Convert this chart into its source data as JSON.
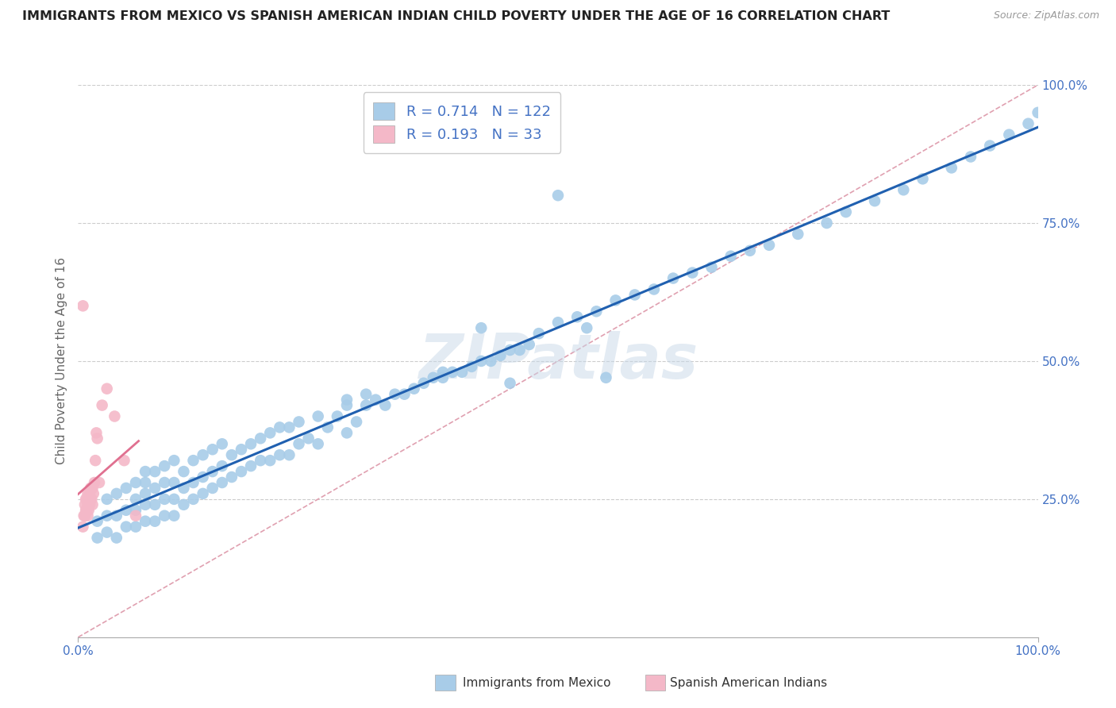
{
  "title": "IMMIGRANTS FROM MEXICO VS SPANISH AMERICAN INDIAN CHILD POVERTY UNDER THE AGE OF 16 CORRELATION CHART",
  "source": "Source: ZipAtlas.com",
  "ylabel": "Child Poverty Under the Age of 16",
  "R_blue": 0.714,
  "N_blue": 122,
  "R_pink": 0.193,
  "N_pink": 33,
  "legend_label_blue": "Immigrants from Mexico",
  "legend_label_pink": "Spanish American Indians",
  "blue_color": "#a8cce8",
  "pink_color": "#f4b8c8",
  "blue_line_color": "#2060b0",
  "pink_line_color": "#e07090",
  "diag_color": "#e0a0b0",
  "diag_style": "--",
  "watermark": "ZIPatlas",
  "bg_color": "#ffffff",
  "blue_scatter_x": [
    0.02,
    0.02,
    0.03,
    0.03,
    0.03,
    0.04,
    0.04,
    0.04,
    0.05,
    0.05,
    0.05,
    0.06,
    0.06,
    0.06,
    0.06,
    0.07,
    0.07,
    0.07,
    0.07,
    0.07,
    0.08,
    0.08,
    0.08,
    0.08,
    0.09,
    0.09,
    0.09,
    0.09,
    0.1,
    0.1,
    0.1,
    0.1,
    0.11,
    0.11,
    0.11,
    0.12,
    0.12,
    0.12,
    0.13,
    0.13,
    0.13,
    0.14,
    0.14,
    0.14,
    0.15,
    0.15,
    0.15,
    0.16,
    0.16,
    0.17,
    0.17,
    0.18,
    0.18,
    0.19,
    0.19,
    0.2,
    0.2,
    0.21,
    0.21,
    0.22,
    0.22,
    0.23,
    0.23,
    0.24,
    0.25,
    0.25,
    0.26,
    0.27,
    0.28,
    0.28,
    0.29,
    0.3,
    0.31,
    0.32,
    0.33,
    0.34,
    0.35,
    0.36,
    0.37,
    0.38,
    0.39,
    0.4,
    0.41,
    0.42,
    0.43,
    0.44,
    0.45,
    0.46,
    0.47,
    0.48,
    0.5,
    0.52,
    0.54,
    0.56,
    0.58,
    0.6,
    0.62,
    0.64,
    0.66,
    0.68,
    0.7,
    0.72,
    0.75,
    0.78,
    0.8,
    0.83,
    0.86,
    0.88,
    0.91,
    0.93,
    0.95,
    0.97,
    0.99,
    1.0,
    0.5,
    0.53,
    0.55,
    0.38,
    0.42,
    0.45,
    0.28,
    0.3
  ],
  "blue_scatter_y": [
    0.18,
    0.21,
    0.19,
    0.22,
    0.25,
    0.18,
    0.22,
    0.26,
    0.2,
    0.23,
    0.27,
    0.2,
    0.23,
    0.25,
    0.28,
    0.21,
    0.24,
    0.26,
    0.28,
    0.3,
    0.21,
    0.24,
    0.27,
    0.3,
    0.22,
    0.25,
    0.28,
    0.31,
    0.22,
    0.25,
    0.28,
    0.32,
    0.24,
    0.27,
    0.3,
    0.25,
    0.28,
    0.32,
    0.26,
    0.29,
    0.33,
    0.27,
    0.3,
    0.34,
    0.28,
    0.31,
    0.35,
    0.29,
    0.33,
    0.3,
    0.34,
    0.31,
    0.35,
    0.32,
    0.36,
    0.32,
    0.37,
    0.33,
    0.38,
    0.33,
    0.38,
    0.35,
    0.39,
    0.36,
    0.35,
    0.4,
    0.38,
    0.4,
    0.37,
    0.42,
    0.39,
    0.42,
    0.43,
    0.42,
    0.44,
    0.44,
    0.45,
    0.46,
    0.47,
    0.47,
    0.48,
    0.48,
    0.49,
    0.5,
    0.5,
    0.51,
    0.52,
    0.52,
    0.53,
    0.55,
    0.57,
    0.58,
    0.59,
    0.61,
    0.62,
    0.63,
    0.65,
    0.66,
    0.67,
    0.69,
    0.7,
    0.71,
    0.73,
    0.75,
    0.77,
    0.79,
    0.81,
    0.83,
    0.85,
    0.87,
    0.89,
    0.91,
    0.93,
    0.95,
    0.8,
    0.56,
    0.47,
    0.48,
    0.56,
    0.46,
    0.43,
    0.44
  ],
  "pink_scatter_x": [
    0.005,
    0.005,
    0.006,
    0.007,
    0.007,
    0.008,
    0.008,
    0.009,
    0.009,
    0.01,
    0.01,
    0.01,
    0.011,
    0.011,
    0.012,
    0.012,
    0.013,
    0.013,
    0.014,
    0.014,
    0.015,
    0.015,
    0.016,
    0.017,
    0.018,
    0.019,
    0.02,
    0.022,
    0.025,
    0.03,
    0.038,
    0.048,
    0.06
  ],
  "pink_scatter_y": [
    0.6,
    0.2,
    0.22,
    0.22,
    0.24,
    0.23,
    0.25,
    0.23,
    0.25,
    0.22,
    0.24,
    0.26,
    0.23,
    0.25,
    0.24,
    0.26,
    0.25,
    0.27,
    0.25,
    0.27,
    0.24,
    0.27,
    0.26,
    0.28,
    0.32,
    0.37,
    0.36,
    0.28,
    0.42,
    0.45,
    0.4,
    0.32,
    0.22
  ]
}
